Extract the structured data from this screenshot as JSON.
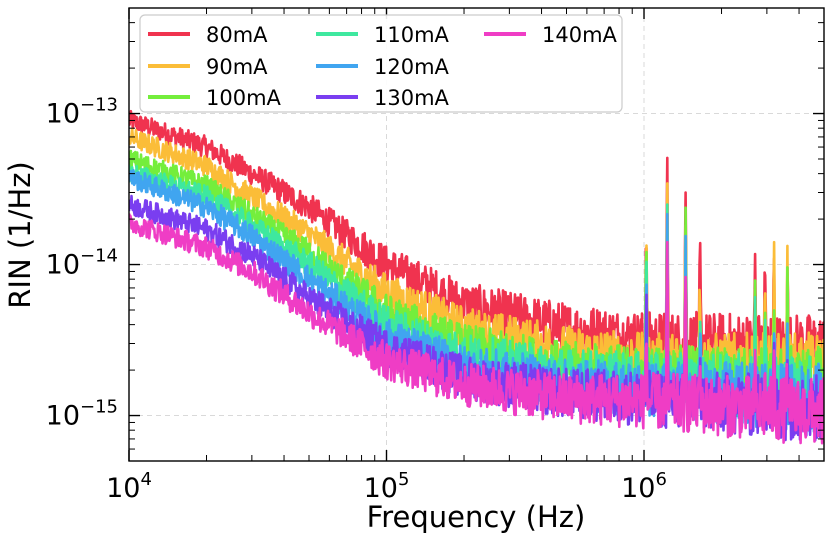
{
  "chart_data": {
    "type": "line",
    "xlabel": "Frequency (Hz)",
    "ylabel": "RIN (1/Hz)",
    "x_scale": "log",
    "y_scale": "log",
    "xlim": [
      10000,
      5000000
    ],
    "ylim": [
      5e-16,
      5e-13
    ],
    "x_ticks": [
      {
        "value": 10000,
        "base": "10",
        "exp": "4"
      },
      {
        "value": 100000,
        "base": "10",
        "exp": "5"
      },
      {
        "value": 1000000,
        "base": "10",
        "exp": "6"
      }
    ],
    "y_ticks": [
      {
        "value": 1e-15,
        "base": "10",
        "exp": "−15"
      },
      {
        "value": 1e-14,
        "base": "10",
        "exp": "−14"
      },
      {
        "value": 1e-13,
        "base": "10",
        "exp": "−13"
      }
    ],
    "grid": true,
    "legend_position": "top-left",
    "spikes_hz": [
      1020000,
      1230000,
      1450000,
      1650000,
      2700000,
      2950000,
      3200000,
      3600000
    ],
    "series": [
      {
        "name": "80mA",
        "color": "#f0334f",
        "points": [
          [
            10000,
            9e-14
          ],
          [
            20000,
            6e-14
          ],
          [
            30000,
            4e-14
          ],
          [
            50000,
            2.4e-14
          ],
          [
            100000,
            1e-14
          ],
          [
            200000,
            5.5e-15
          ],
          [
            500000,
            3.8e-15
          ],
          [
            1000000,
            3.2e-15
          ],
          [
            5000000,
            2.8e-15
          ]
        ]
      },
      {
        "name": "90mA",
        "color": "#fbbd38",
        "points": [
          [
            10000,
            7e-14
          ],
          [
            20000,
            4.5e-14
          ],
          [
            30000,
            2.8e-14
          ],
          [
            50000,
            1.6e-14
          ],
          [
            100000,
            6.5e-15
          ],
          [
            200000,
            3.8e-15
          ],
          [
            500000,
            2.7e-15
          ],
          [
            1000000,
            2.3e-15
          ],
          [
            5000000,
            2.1e-15
          ]
        ]
      },
      {
        "name": "100mA",
        "color": "#74ee3c",
        "points": [
          [
            10000,
            5e-14
          ],
          [
            20000,
            3.3e-14
          ],
          [
            30000,
            2.1e-14
          ],
          [
            50000,
            1.2e-14
          ],
          [
            100000,
            4.8e-15
          ],
          [
            200000,
            2.9e-15
          ],
          [
            500000,
            2.1e-15
          ],
          [
            1000000,
            1.9e-15
          ],
          [
            5000000,
            1.7e-15
          ]
        ]
      },
      {
        "name": "110mA",
        "color": "#3ee89f",
        "points": [
          [
            10000,
            4.1e-14
          ],
          [
            20000,
            2.8e-14
          ],
          [
            30000,
            1.8e-14
          ],
          [
            50000,
            1e-14
          ],
          [
            100000,
            4e-15
          ],
          [
            200000,
            2.5e-15
          ],
          [
            500000,
            1.9e-15
          ],
          [
            1000000,
            1.7e-15
          ],
          [
            5000000,
            1.5e-15
          ]
        ]
      },
      {
        "name": "120mA",
        "color": "#40a5f0",
        "points": [
          [
            10000,
            3.8e-14
          ],
          [
            20000,
            2.4e-14
          ],
          [
            30000,
            1.55e-14
          ],
          [
            50000,
            8e-15
          ],
          [
            100000,
            3.3e-15
          ],
          [
            200000,
            2.1e-15
          ],
          [
            500000,
            1.6e-15
          ],
          [
            1000000,
            1.5e-15
          ],
          [
            5000000,
            1.3e-15
          ]
        ]
      },
      {
        "name": "130mA",
        "color": "#7a3ef0",
        "points": [
          [
            10000,
            2.5e-14
          ],
          [
            20000,
            1.7e-14
          ],
          [
            30000,
            1.15e-14
          ],
          [
            50000,
            6e-15
          ],
          [
            100000,
            2.8e-15
          ],
          [
            200000,
            1.8e-15
          ],
          [
            500000,
            1.4e-15
          ],
          [
            1000000,
            1.3e-15
          ],
          [
            5000000,
            1.1e-15
          ]
        ]
      },
      {
        "name": "140mA",
        "color": "#ef3dc5",
        "points": [
          [
            10000,
            1.9e-14
          ],
          [
            20000,
            1.3e-14
          ],
          [
            30000,
            9e-15
          ],
          [
            50000,
            4.8e-15
          ],
          [
            100000,
            2.3e-15
          ],
          [
            200000,
            1.6e-15
          ],
          [
            500000,
            1.3e-15
          ],
          [
            1000000,
            1.25e-15
          ],
          [
            5000000,
            1.05e-15
          ]
        ]
      }
    ]
  }
}
